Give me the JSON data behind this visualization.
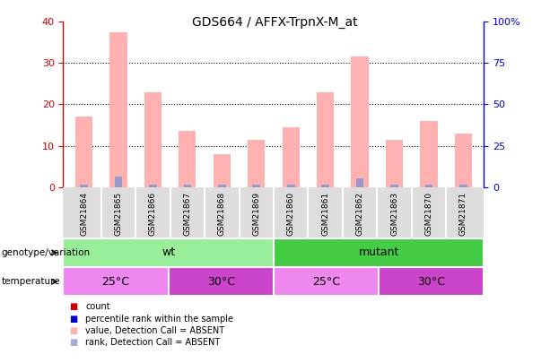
{
  "title": "GDS664 / AFFX-TrpnX-M_at",
  "samples": [
    "GSM21864",
    "GSM21865",
    "GSM21866",
    "GSM21867",
    "GSM21868",
    "GSM21869",
    "GSM21860",
    "GSM21861",
    "GSM21862",
    "GSM21863",
    "GSM21870",
    "GSM21871"
  ],
  "pink_bars": [
    17,
    37.5,
    23,
    13.5,
    8,
    11.5,
    14.5,
    23,
    31.5,
    11.5,
    16,
    13
  ],
  "blue_bars": [
    0.5,
    2.5,
    0.5,
    0.5,
    0.5,
    0.5,
    0.5,
    0.5,
    2,
    0.5,
    0.5,
    0.5
  ],
  "ylim_left": [
    0,
    40
  ],
  "ylim_right": [
    0,
    100
  ],
  "yticks_left": [
    0,
    10,
    20,
    30,
    40
  ],
  "yticks_right": [
    0,
    25,
    50,
    75,
    100
  ],
  "yticklabels_right": [
    "0",
    "25",
    "50",
    "75",
    "100%"
  ],
  "genotype_groups": [
    {
      "label": "wt",
      "start": 0,
      "end": 6,
      "color": "#99EE99"
    },
    {
      "label": "mutant",
      "start": 6,
      "end": 12,
      "color": "#44CC44"
    }
  ],
  "temperature_groups": [
    {
      "label": "25°C",
      "start": 0,
      "end": 3,
      "color": "#EE88EE"
    },
    {
      "label": "30°C",
      "start": 3,
      "end": 6,
      "color": "#CC44CC"
    },
    {
      "label": "25°C",
      "start": 6,
      "end": 9,
      "color": "#EE88EE"
    },
    {
      "label": "30°C",
      "start": 9,
      "end": 12,
      "color": "#CC44CC"
    }
  ],
  "legend_colors": [
    "#CC0000",
    "#0000CC",
    "#FFB0B0",
    "#AAAADD"
  ],
  "legend_labels": [
    "count",
    "percentile rank within the sample",
    "value, Detection Call = ABSENT",
    "rank, Detection Call = ABSENT"
  ],
  "pink_color": "#FFB0B0",
  "blue_color": "#9999CC",
  "left_tick_color": "#CC0000",
  "right_tick_color": "#0000CC",
  "grid_color": "#000000",
  "label_bg_color": "#DDDDDD",
  "bar_width": 0.5
}
